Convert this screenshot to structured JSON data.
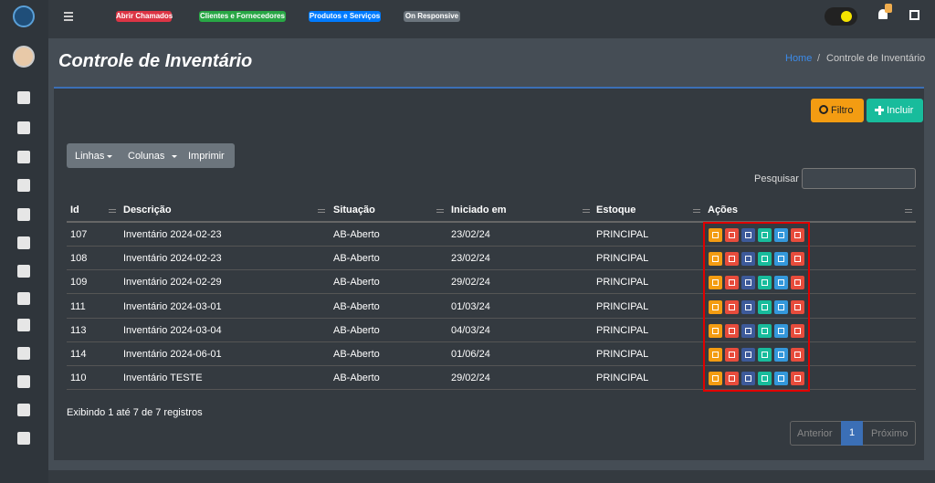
{
  "topbar": {
    "badges": [
      {
        "label": "Abrir Chamados",
        "color": "#dc3545"
      },
      {
        "label": "Clientes e Fornecedores",
        "color": "#28a745"
      },
      {
        "label": "Produtos e Serviços",
        "color": "#007bff"
      },
      {
        "label": "On Responsive",
        "color": "#6c757d"
      }
    ]
  },
  "header": {
    "title": "Controle de Inventário",
    "breadcrumb": [
      "Home",
      "/",
      "Controle de Inventário"
    ]
  },
  "toolbar": {
    "buttons": [
      "Filtro",
      "Incluir"
    ],
    "menu": [
      "Linhas",
      "Colunas",
      "Imprimir"
    ],
    "search_label": "Pesquisar"
  },
  "table": {
    "columns": [
      "Id",
      "Descrição",
      "Situação",
      "Iniciado em",
      "Estoque",
      "Ações"
    ],
    "rows": [
      [
        "107",
        "Inventário 2024-02-23",
        "AB-Aberto",
        "23/02/24",
        "PRINCIPAL"
      ],
      [
        "108",
        "Inventário 2024-02-23",
        "AB-Aberto",
        "23/02/24",
        "PRINCIPAL"
      ],
      [
        "109",
        "Inventário 2024-02-29",
        "AB-Aberto",
        "29/02/24",
        "PRINCIPAL"
      ],
      [
        "111",
        "Inventário 2024-03-01",
        "AB-Aberto",
        "01/03/24",
        "PRINCIPAL"
      ],
      [
        "113",
        "Inventário 2024-03-04",
        "AB-Aberto",
        "04/03/24",
        "PRINCIPAL"
      ],
      [
        "114",
        "Inventário 2024-06-01",
        "AB-Aberto",
        "01/06/24",
        "PRINCIPAL"
      ],
      [
        "110",
        "Inventário TESTE",
        "AB-Aberto",
        "29/02/24",
        "PRINCIPAL"
      ]
    ]
  },
  "footer": {
    "info": "Exibindo 1 até 7 de 7 registros",
    "pagination": [
      "Anterior",
      "1",
      "Próximo"
    ]
  }
}
